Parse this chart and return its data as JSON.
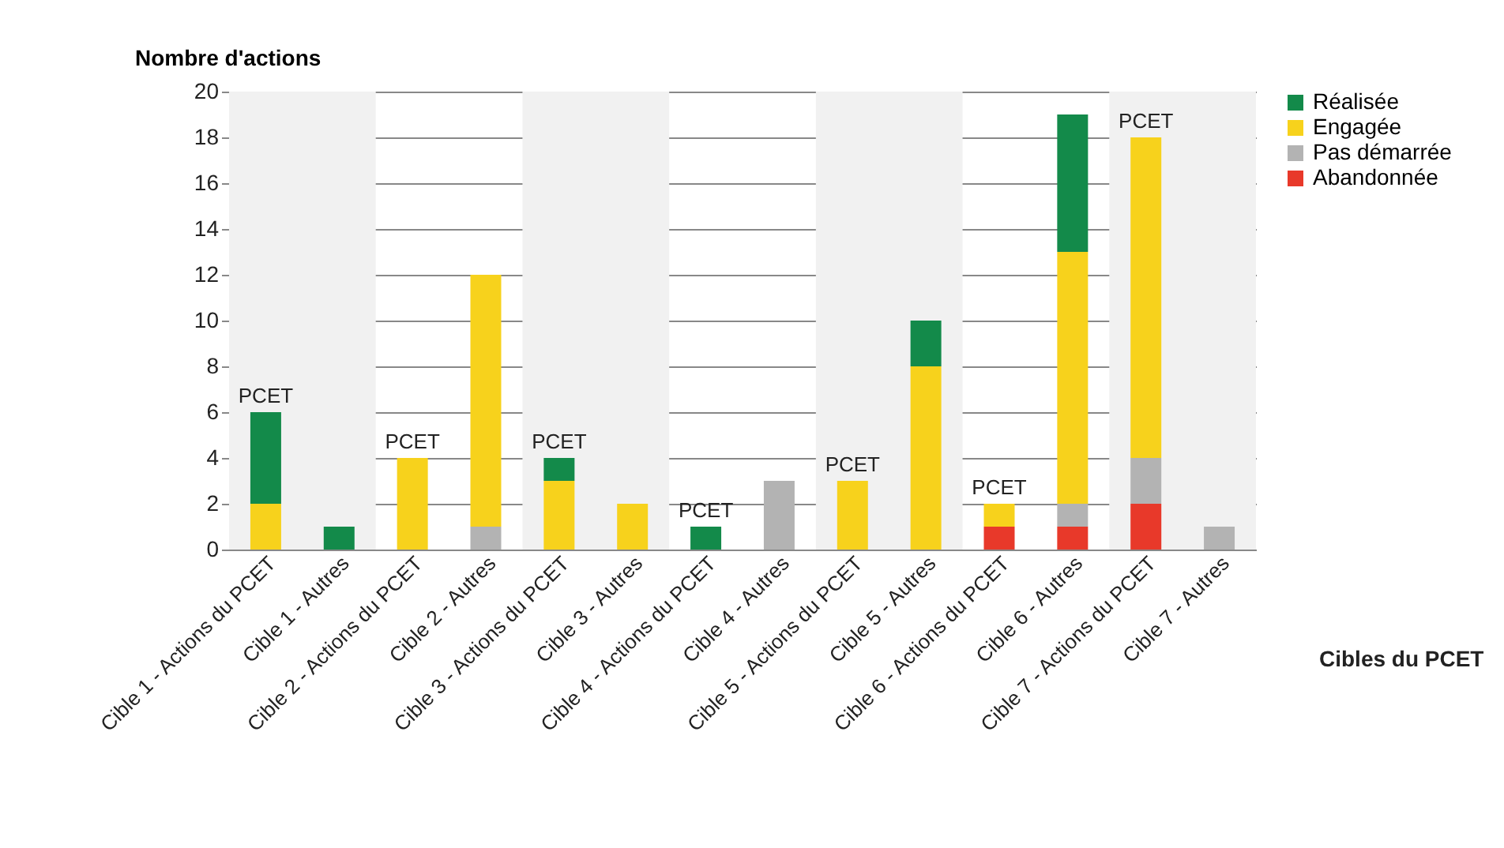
{
  "chart_data": {
    "type": "bar",
    "stacked": true,
    "ylabel": "Nombre d'actions",
    "xlabel": "Cibles du PCET",
    "categories": [
      "Cible 1 - Actions du PCET",
      "Cible 1 - Autres",
      "Cible 2 - Actions du PCET",
      "Cible 2 - Autres",
      "Cible 3 - Actions du PCET",
      "Cible 3 - Autres",
      "Cible 4 - Actions du PCET",
      "Cible 4 - Autres",
      "Cible 5 - Actions du PCET",
      "Cible 5 - Autres",
      "Cible 6 - Actions du PCET",
      "Cible 6 - Autres",
      "Cible 7 - Actions du PCET",
      "Cible 7 - Autres"
    ],
    "series": [
      {
        "name": "Abandonnée",
        "color": "#e8392a",
        "values": [
          0,
          0,
          0,
          0,
          0,
          0,
          0,
          0,
          0,
          0,
          1,
          1,
          2,
          0
        ]
      },
      {
        "name": "Pas démarrée",
        "color": "#b3b3b3",
        "values": [
          0,
          0,
          0,
          1,
          0,
          0,
          0,
          3,
          0,
          0,
          0,
          1,
          2,
          1
        ]
      },
      {
        "name": "Engagée",
        "color": "#f7d21c",
        "values": [
          2,
          0,
          4,
          11,
          3,
          2,
          0,
          0,
          3,
          8,
          1,
          11,
          14,
          0
        ]
      },
      {
        "name": "Réalisée",
        "color": "#138a4a",
        "values": [
          4,
          1,
          0,
          0,
          1,
          0,
          1,
          0,
          0,
          2,
          0,
          6,
          0,
          0
        ]
      }
    ],
    "ylim": [
      0,
      20
    ],
    "yticks": [
      0,
      2,
      4,
      6,
      8,
      10,
      12,
      14,
      16,
      18,
      20
    ],
    "grid": "y",
    "legend": "right",
    "bands": [
      {
        "axis": "x",
        "from": "Cible 1 - Actions du PCET",
        "to": "Cible 1 - Autres",
        "color": "#f1f1f1"
      },
      {
        "axis": "x",
        "from": "Cible 3 - Actions du PCET",
        "to": "Cible 3 - Autres",
        "color": "#f1f1f1"
      },
      {
        "axis": "x",
        "from": "Cible 5 - Actions du PCET",
        "to": "Cible 5 - Autres",
        "color": "#f1f1f1"
      },
      {
        "axis": "x",
        "from": "Cible 7 - Actions du PCET",
        "to": "Cible 7 - Autres",
        "color": "#f1f1f1"
      }
    ],
    "annotations": [
      {
        "text": "PCET",
        "x": "Cible 1 - Actions du PCET",
        "y": 6
      },
      {
        "text": "PCET",
        "x": "Cible 2 - Actions du PCET",
        "y": 4
      },
      {
        "text": "PCET",
        "x": "Cible 3 - Actions du PCET",
        "y": 4
      },
      {
        "text": "PCET",
        "x": "Cible 4 - Actions du PCET",
        "y": 1
      },
      {
        "text": "PCET",
        "x": "Cible 5 - Actions du PCET",
        "y": 3
      },
      {
        "text": "PCET",
        "x": "Cible 6 - Actions du PCET",
        "y": 2
      },
      {
        "text": "PCET",
        "x": "Cible 7 - Actions du PCET",
        "y": 18
      }
    ]
  }
}
